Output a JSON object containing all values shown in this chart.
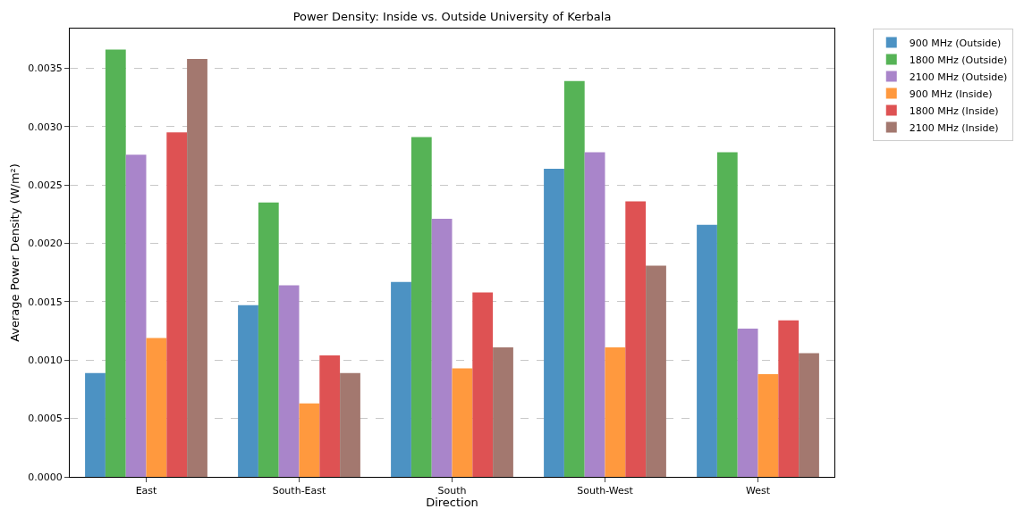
{
  "chart_data": {
    "type": "bar",
    "title": "Power Density: Inside vs. Outside University of Kerbala",
    "xlabel": "Direction",
    "ylabel": "Average Power Density (W/m²)",
    "categories": [
      "East",
      "South-East",
      "South",
      "South-West",
      "West"
    ],
    "series": [
      {
        "name": "900 MHz (Outside)",
        "color": "#4c92c3",
        "values": [
          0.00089,
          0.00147,
          0.00167,
          0.00264,
          0.00216
        ]
      },
      {
        "name": "1800 MHz (Outside)",
        "color": "#56b356",
        "values": [
          0.00366,
          0.00235,
          0.00291,
          0.00339,
          0.00278
        ]
      },
      {
        "name": "2100 MHz (Outside)",
        "color": "#a985ca",
        "values": [
          0.00276,
          0.00164,
          0.00221,
          0.00278,
          0.00127
        ]
      },
      {
        "name": "900 MHz (Inside)",
        "color": "#ff993e",
        "values": [
          0.00119,
          0.00063,
          0.00093,
          0.00111,
          0.00088
        ]
      },
      {
        "name": "1800 MHz (Inside)",
        "color": "#de5253",
        "values": [
          0.00295,
          0.00104,
          0.00158,
          0.00236,
          0.00134
        ]
      },
      {
        "name": "2100 MHz (Inside)",
        "color": "#a3786f",
        "values": [
          0.00358,
          0.00089,
          0.00111,
          0.00181,
          0.00106
        ]
      }
    ],
    "ylim": [
      0,
      0.00384
    ],
    "yticks": [
      {
        "value": 0,
        "label": "0.0000"
      },
      {
        "value": 0.0005,
        "label": "0.0005"
      },
      {
        "value": 0.001,
        "label": "0.0010"
      },
      {
        "value": 0.0015,
        "label": "0.0015"
      },
      {
        "value": 0.002,
        "label": "0.0020"
      },
      {
        "value": 0.0025,
        "label": "0.0025"
      },
      {
        "value": 0.003,
        "label": "0.0030"
      },
      {
        "value": 0.0035,
        "label": "0.0035"
      }
    ],
    "grid": "y",
    "legend": "top right"
  }
}
